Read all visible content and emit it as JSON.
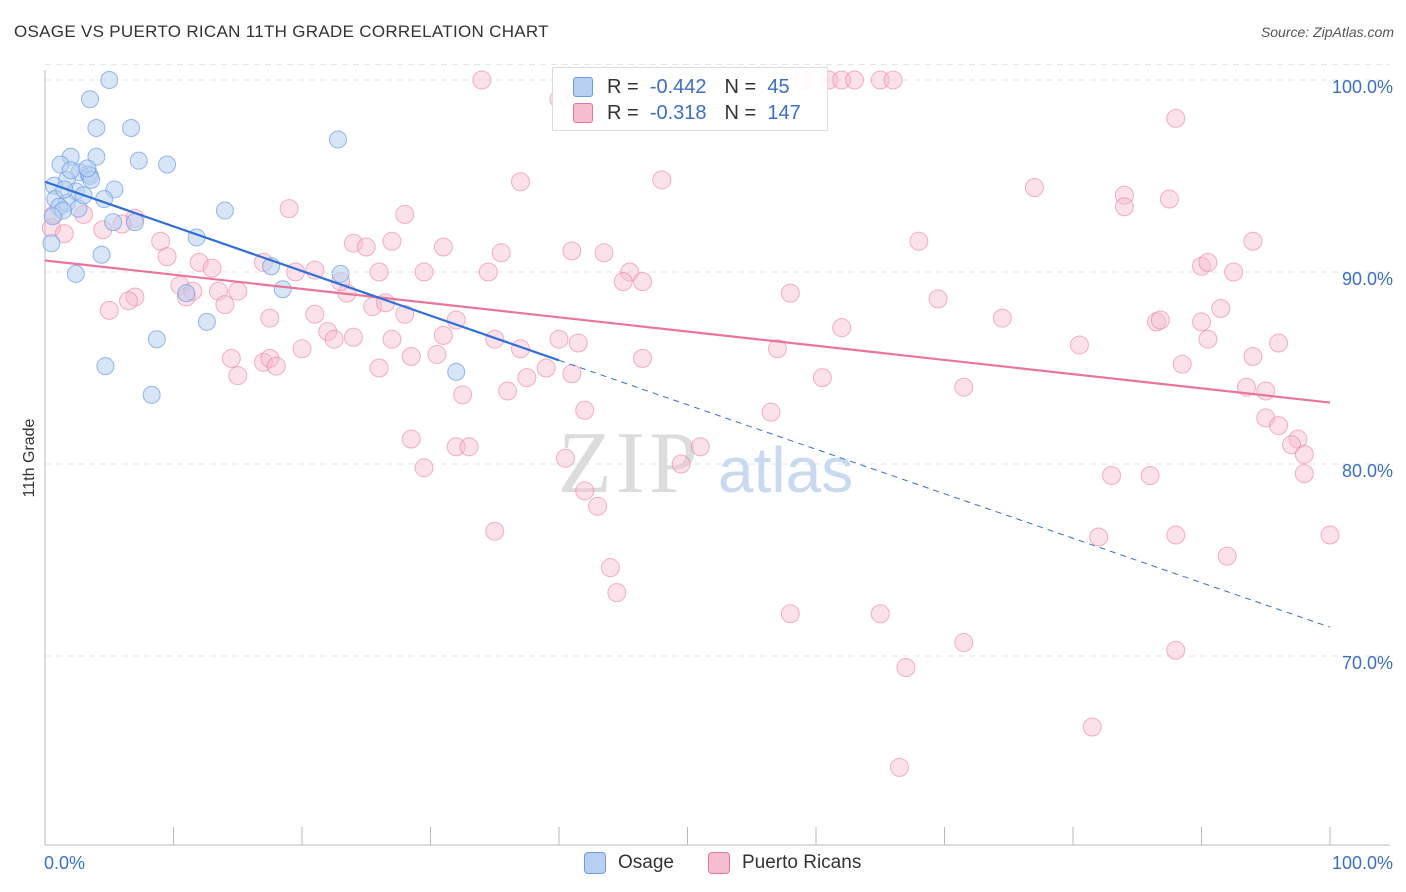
{
  "header": {
    "title": "OSAGE VS PUERTO RICAN 11TH GRADE CORRELATION CHART",
    "source": "Source: ZipAtlas.com"
  },
  "colors": {
    "osage": "#6b9de3",
    "osage_fill": "#b7cff1",
    "puerto_rican": "#e9759b",
    "puerto_rican_fill": "#f6bcd0",
    "axis_text": "#3b6fc6"
  },
  "legend": {
    "osage": {
      "r_label": "R =",
      "r_value": "-0.442",
      "n_label": "N =",
      "n_value": "45"
    },
    "puerto_rican": {
      "r_label": "R =",
      "r_value": "-0.318",
      "n_label": "N =",
      "n_value": "147"
    }
  },
  "watermark": {
    "zip": "ZIP",
    "atlas": "atlas"
  },
  "bottom_legend": {
    "osage": "Osage",
    "puerto_rican": "Puerto Ricans"
  },
  "chart_data": {
    "type": "scatter",
    "title": "OSAGE VS PUERTO RICAN 11TH GRADE CORRELATION CHART",
    "xlabel": "",
    "ylabel": "11th Grade",
    "xlim": [
      0,
      100
    ],
    "ylim": [
      60,
      102
    ],
    "x_tick_labels": [
      "0.0%",
      "100.0%"
    ],
    "y_ticks": [
      70,
      80,
      90,
      100
    ],
    "y_tick_labels": [
      "70.0%",
      "80.0%",
      "90.0%",
      "100.0%"
    ],
    "grid": true,
    "legend_position": "top-center",
    "series": [
      {
        "name": "Osage",
        "r": -0.442,
        "n": 45,
        "trend": {
          "x": [
            0,
            40
          ],
          "y": [
            94.7,
            85.4
          ],
          "dashed_extension": {
            "x": [
              40,
              100
            ],
            "y": [
              85.4,
              71.5
            ]
          }
        },
        "points": [
          [
            5,
            100
          ],
          [
            3.5,
            99
          ],
          [
            4,
            97.5
          ],
          [
            6.7,
            97.5
          ],
          [
            2,
            96
          ],
          [
            4,
            96
          ],
          [
            7.3,
            95.8
          ],
          [
            9.5,
            95.6
          ],
          [
            1.2,
            95.6
          ],
          [
            2.7,
            95.2
          ],
          [
            3.4,
            95.1
          ],
          [
            3.5,
            95
          ],
          [
            3.6,
            94.8
          ],
          [
            1.7,
            94.8
          ],
          [
            2.4,
            94.2
          ],
          [
            0.7,
            94.5
          ],
          [
            5.4,
            94.3
          ],
          [
            0.8,
            93.8
          ],
          [
            4.6,
            93.8
          ],
          [
            1.7,
            93.6
          ],
          [
            1.1,
            93.4
          ],
          [
            2.6,
            93.3
          ],
          [
            1.4,
            93.2
          ],
          [
            14,
            93.2
          ],
          [
            0.6,
            92.9
          ],
          [
            5.3,
            92.6
          ],
          [
            7,
            92.6
          ],
          [
            11.8,
            91.8
          ],
          [
            0.5,
            91.5
          ],
          [
            4.4,
            90.9
          ],
          [
            17.6,
            90.3
          ],
          [
            23,
            89.9
          ],
          [
            2.4,
            89.9
          ],
          [
            18.5,
            89.1
          ],
          [
            11,
            88.9
          ],
          [
            12.6,
            87.4
          ],
          [
            8.7,
            86.5
          ],
          [
            32,
            84.8
          ],
          [
            4.7,
            85.1
          ],
          [
            8.3,
            83.6
          ],
          [
            22.8,
            96.9
          ],
          [
            2,
            95.3
          ],
          [
            3,
            94
          ],
          [
            1.5,
            94.3
          ],
          [
            3.3,
            95.4
          ]
        ]
      },
      {
        "name": "Puerto Ricans",
        "r": -0.318,
        "n": 147,
        "trend": {
          "x": [
            0,
            100
          ],
          "y": [
            90.6,
            83.2
          ]
        },
        "points": [
          [
            34,
            100
          ],
          [
            59,
            100
          ],
          [
            60,
            100
          ],
          [
            61,
            100
          ],
          [
            62,
            100
          ],
          [
            63,
            100
          ],
          [
            65,
            100
          ],
          [
            66,
            100
          ],
          [
            50,
            100
          ],
          [
            40,
            99
          ],
          [
            88,
            98
          ],
          [
            37,
            94.7
          ],
          [
            48,
            94.8
          ],
          [
            77,
            94.4
          ],
          [
            84,
            94
          ],
          [
            84,
            93.4
          ],
          [
            87.5,
            93.8
          ],
          [
            19,
            93.3
          ],
          [
            28,
            93
          ],
          [
            0.7,
            93
          ],
          [
            3,
            93
          ],
          [
            7,
            92.8
          ],
          [
            4.5,
            92.2
          ],
          [
            6,
            92.5
          ],
          [
            0.5,
            92.3
          ],
          [
            1.5,
            92
          ],
          [
            9,
            91.6
          ],
          [
            24,
            91.5
          ],
          [
            25,
            91.3
          ],
          [
            27,
            91.6
          ],
          [
            31,
            91.3
          ],
          [
            35.5,
            91
          ],
          [
            41,
            91.1
          ],
          [
            43.5,
            91
          ],
          [
            68,
            91.6
          ],
          [
            94,
            91.6
          ],
          [
            9.5,
            90.8
          ],
          [
            12,
            90.5
          ],
          [
            17,
            90.5
          ],
          [
            13,
            90.2
          ],
          [
            19.5,
            90
          ],
          [
            21,
            90.1
          ],
          [
            26,
            90
          ],
          [
            29.5,
            90
          ],
          [
            34.5,
            90
          ],
          [
            45.5,
            90
          ],
          [
            90,
            90.3
          ],
          [
            90.5,
            90.5
          ],
          [
            92.5,
            90
          ],
          [
            7,
            88.7
          ],
          [
            10.5,
            89.3
          ],
          [
            11,
            88.7
          ],
          [
            11.5,
            89
          ],
          [
            13.5,
            89
          ],
          [
            14,
            88.3
          ],
          [
            17.5,
            87.6
          ],
          [
            21,
            87.8
          ],
          [
            23.5,
            88.9
          ],
          [
            25.5,
            88.2
          ],
          [
            26.5,
            88.4
          ],
          [
            28,
            87.8
          ],
          [
            31,
            86.7
          ],
          [
            32,
            87.5
          ],
          [
            35,
            86.5
          ],
          [
            37,
            86
          ],
          [
            40,
            86.5
          ],
          [
            41.5,
            86.3
          ],
          [
            45,
            89.5
          ],
          [
            46.5,
            89.5
          ],
          [
            58,
            88.9
          ],
          [
            62,
            87.1
          ],
          [
            69.5,
            88.6
          ],
          [
            74.5,
            87.6
          ],
          [
            80.5,
            86.2
          ],
          [
            86.5,
            87.4
          ],
          [
            86.8,
            87.5
          ],
          [
            90,
            87.4
          ],
          [
            90.5,
            86.5
          ],
          [
            91.5,
            88.1
          ],
          [
            94,
            85.6
          ],
          [
            96,
            86.3
          ],
          [
            14.5,
            85.5
          ],
          [
            15,
            84.6
          ],
          [
            17,
            85.3
          ],
          [
            17.5,
            85.5
          ],
          [
            18,
            85.1
          ],
          [
            20,
            86
          ],
          [
            22,
            86.9
          ],
          [
            24,
            86.6
          ],
          [
            26,
            85
          ],
          [
            27,
            86.5
          ],
          [
            28.5,
            85.6
          ],
          [
            30.5,
            85.7
          ],
          [
            39,
            85
          ],
          [
            41,
            84.7
          ],
          [
            46.5,
            85.5
          ],
          [
            57,
            86
          ],
          [
            71.5,
            84
          ],
          [
            88.5,
            85.2
          ],
          [
            93.5,
            84
          ],
          [
            95,
            83.8
          ],
          [
            32.5,
            83.6
          ],
          [
            36,
            83.8
          ],
          [
            42,
            82.8
          ],
          [
            56.5,
            82.7
          ],
          [
            95,
            82.4
          ],
          [
            96,
            82
          ],
          [
            97.5,
            81.3
          ],
          [
            97,
            81
          ],
          [
            98,
            80.5
          ],
          [
            28.5,
            81.3
          ],
          [
            32,
            80.9
          ],
          [
            33,
            80.9
          ],
          [
            40.5,
            80.3
          ],
          [
            49.5,
            80
          ],
          [
            51,
            80.9
          ],
          [
            29.5,
            79.8
          ],
          [
            42,
            78.6
          ],
          [
            43,
            77.8
          ],
          [
            83,
            79.4
          ],
          [
            86,
            79.4
          ],
          [
            98,
            79.5
          ],
          [
            35,
            76.5
          ],
          [
            44,
            74.6
          ],
          [
            44.5,
            73.3
          ],
          [
            82,
            76.2
          ],
          [
            88,
            76.3
          ],
          [
            92,
            75.2
          ],
          [
            100,
            76.3
          ],
          [
            58,
            72.2
          ],
          [
            65,
            72.2
          ],
          [
            71.5,
            70.7
          ],
          [
            67,
            69.4
          ],
          [
            88,
            70.3
          ],
          [
            81.5,
            66.3
          ],
          [
            66.5,
            64.2
          ],
          [
            22.5,
            86.5
          ],
          [
            5,
            88
          ],
          [
            6.5,
            88.5
          ],
          [
            15,
            89
          ],
          [
            23,
            89.5
          ],
          [
            37.5,
            84.5
          ],
          [
            60.5,
            84.5
          ]
        ]
      }
    ]
  }
}
